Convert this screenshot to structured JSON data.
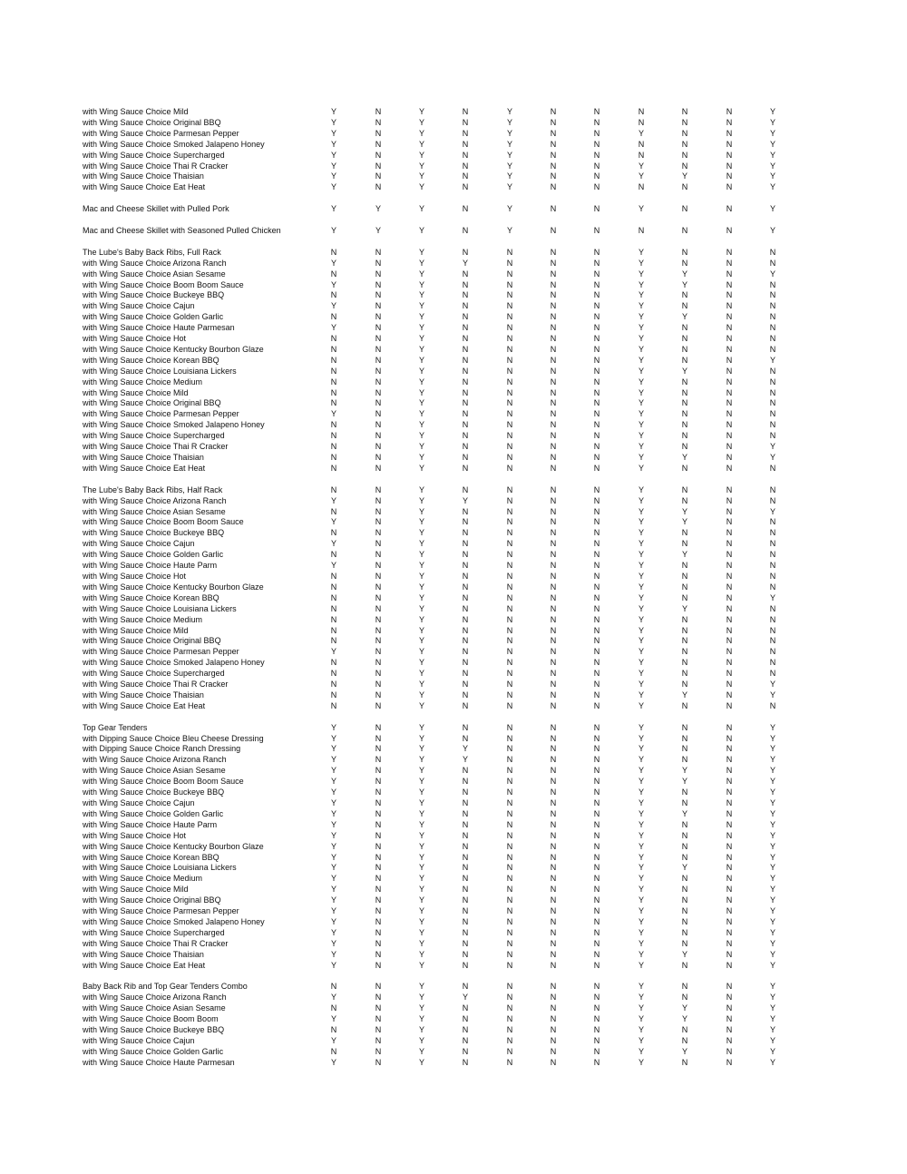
{
  "groups": [
    {
      "rows": [
        [
          "with Wing Sauce Choice Mild",
          "YNYNYNNNNNY"
        ],
        [
          "with Wing Sauce Choice Original BBQ",
          "YNYNYNNNNNY"
        ],
        [
          "with Wing Sauce Choice Parmesan Pepper",
          "YNYNYNNYNNY"
        ],
        [
          "with Wing Sauce Choice Smoked Jalapeno Honey",
          "YNYNYNNNNNY"
        ],
        [
          "with Wing Sauce Choice Supercharged",
          "YNYNYNNNNNY"
        ],
        [
          "with Wing Sauce Choice Thai R Cracker",
          "YNYNYNNYNNY"
        ],
        [
          "with Wing Sauce Choice Thaisian",
          "YNYNYNNYYNY"
        ],
        [
          "with Wing Sauce Choice Eat Heat",
          "YNYNYNNNNNY"
        ]
      ]
    },
    {
      "rows": [
        [
          "Mac and Cheese Skillet with Pulled Pork",
          "YYYNYNNYNNY"
        ]
      ]
    },
    {
      "rows": [
        [
          "Mac and Cheese Skillet with Seasoned Pulled Chicken",
          "YYYNYNNNNNY"
        ]
      ]
    },
    {
      "rows": [
        [
          "The Lube's Baby Back Ribs, Full Rack",
          "NNYNNNNYNNN"
        ],
        [
          "with Wing Sauce Choice Arizona Ranch",
          "YNYYNNNYNNN"
        ],
        [
          "with Wing Sauce Choice Asian Sesame",
          "NNYNNNNYYNY"
        ],
        [
          "with Wing Sauce Choice Boom Boom Sauce",
          "YNYNNNNYYNN"
        ],
        [
          "with Wing Sauce Choice Buckeye BBQ",
          "NNYNNNNYNNN"
        ],
        [
          "with Wing Sauce Choice Cajun",
          "YNYNNNNYNNN"
        ],
        [
          "with Wing Sauce Choice Golden Garlic",
          "NNYNNNNYYNN"
        ],
        [
          "with Wing Sauce Choice Haute Parmesan",
          "YNYNNNNYNNN"
        ],
        [
          "with Wing Sauce Choice Hot",
          "NNYNNNNYNNN"
        ],
        [
          "with Wing Sauce Choice Kentucky Bourbon Glaze",
          "NNYNNNNYNNN"
        ],
        [
          "with Wing Sauce Choice Korean BBQ",
          "NNYNNNNYNNY"
        ],
        [
          "with Wing Sauce Choice Louisiana Lickers",
          "NNYNNNNYYNN"
        ],
        [
          "with Wing Sauce Choice Medium",
          "NNYNNNNYNNN"
        ],
        [
          "with Wing Sauce Choice Mild",
          "NNYNNNNYNNN"
        ],
        [
          "with Wing Sauce Choice Original BBQ",
          "NNYNNNNYNNN"
        ],
        [
          "with Wing Sauce Choice Parmesan Pepper",
          "YNYNNNNYNNN"
        ],
        [
          "with Wing Sauce Choice Smoked Jalapeno Honey",
          "NNYNNNNYNNN"
        ],
        [
          "with Wing Sauce Choice Supercharged",
          "NNYNNNNYNNN"
        ],
        [
          "with Wing Sauce Choice Thai R Cracker",
          "NNYNNNNYNNY"
        ],
        [
          "with Wing Sauce Choice Thaisian",
          "NNYNNNNYYNY"
        ],
        [
          "with Wing Sauce Choice Eat Heat",
          "NNYNNNNYNNN"
        ]
      ]
    },
    {
      "rows": [
        [
          "The Lube's Baby Back Ribs, Half Rack",
          "NNYNNNNYNNN"
        ],
        [
          "with Wing Sauce Choice Arizona Ranch",
          "YNYYNNNYNNN"
        ],
        [
          "with Wing Sauce Choice Asian Sesame",
          "NNYNNNNYYNY"
        ],
        [
          "with Wing Sauce Choice Boom Boom Sauce",
          "YNYNNNNYYNN"
        ],
        [
          "with Wing Sauce Choice Buckeye BBQ",
          "NNYNNNNYNNN"
        ],
        [
          "with Wing Sauce Choice Cajun",
          "YNYNNNNYNNN"
        ],
        [
          "with Wing Sauce Choice Golden Garlic",
          "NNYNNNNYYNN"
        ],
        [
          "with Wing Sauce Choice Haute Parm",
          "YNYNNNNYNNN"
        ],
        [
          "with Wing Sauce Choice Hot",
          "NNYNNNNYNNN"
        ],
        [
          "with Wing Sauce Choice Kentucky Bourbon Glaze",
          "NNYNNNNYNNN"
        ],
        [
          "with Wing Sauce Choice Korean BBQ",
          "NNYNNNNYNNY"
        ],
        [
          "with Wing Sauce Choice Louisiana Lickers",
          "NNYNNNNYYNN"
        ],
        [
          "with Wing Sauce Choice Medium",
          "NNYNNNNYNNN"
        ],
        [
          "with Wing Sauce Choice Mild",
          "NNYNNNNYNNN"
        ],
        [
          "with Wing Sauce Choice Original BBQ",
          "NNYNNNNYNNN"
        ],
        [
          "with Wing Sauce Choice Parmesan Pepper",
          "YNYNNNNYNNN"
        ],
        [
          "with Wing Sauce Choice Smoked Jalapeno Honey",
          "NNYNNNNYNNN"
        ],
        [
          "with Wing Sauce Choice Supercharged",
          "NNYNNNNYNNN"
        ],
        [
          "with Wing Sauce Choice Thai R Cracker",
          "NNYNNNNYNNY"
        ],
        [
          "with Wing Sauce Choice Thaisian",
          "NNYNNNNYYNY"
        ],
        [
          "with Wing Sauce Choice Eat Heat",
          "NNYNNNNYNNN"
        ]
      ]
    },
    {
      "rows": [
        [
          "Top Gear Tenders",
          "YNYNNNNYNNY"
        ],
        [
          "with Dipping Sauce Choice Bleu Cheese Dressing",
          "YNYNNNNYNNY"
        ],
        [
          "with Dipping Sauce Choice Ranch Dressing",
          "YNYYNNNYNNY"
        ],
        [
          "with Wing Sauce Choice Arizona Ranch",
          "YNYYNNNYNNY"
        ],
        [
          "with Wing Sauce Choice Asian Sesame",
          "YNYNNNNYYNY"
        ],
        [
          "with Wing Sauce Choice Boom Boom Sauce",
          "YNYNNNNYYNY"
        ],
        [
          "with Wing Sauce Choice Buckeye BBQ",
          "YNYNNNNYNNY"
        ],
        [
          "with Wing Sauce Choice Cajun",
          "YNYNNNNYNNY"
        ],
        [
          "with Wing Sauce Choice Golden Garlic",
          "YNYNNNNYYNY"
        ],
        [
          "with Wing Sauce Choice Haute Parm",
          "YNYNNNNYNNY"
        ],
        [
          "with Wing Sauce Choice Hot",
          "YNYNNNNYNNY"
        ],
        [
          "with Wing Sauce Choice Kentucky Bourbon Glaze",
          "YNYNNNNYNNY"
        ],
        [
          "with Wing Sauce Choice Korean BBQ",
          "YNYNNNNYNNY"
        ],
        [
          "with Wing Sauce Choice Louisiana Lickers",
          "YNYNNNNYYNY"
        ],
        [
          "with Wing Sauce Choice Medium",
          "YNYNNNNYNNY"
        ],
        [
          "with Wing Sauce Choice Mild",
          "YNYNNNNYNNY"
        ],
        [
          "with Wing Sauce Choice Original BBQ",
          "YNYNNNNYNNY"
        ],
        [
          "with Wing Sauce Choice Parmesan Pepper",
          "YNYNNNNYNNY"
        ],
        [
          "with Wing Sauce Choice Smoked Jalapeno Honey",
          "YNYNNNNYNNY"
        ],
        [
          "with Wing Sauce Choice Supercharged",
          "YNYNNNNYNNY"
        ],
        [
          "with Wing Sauce Choice Thai R Cracker",
          "YNYNNNNYNNY"
        ],
        [
          "with Wing Sauce Choice Thaisian",
          "YNYNNNNYYNY"
        ],
        [
          "with Wing Sauce Choice Eat Heat",
          "YNYNNNNYNNY"
        ]
      ]
    },
    {
      "rows": [
        [
          "Baby Back Rib and Top Gear Tenders Combo",
          "NNYNNNNYNNY"
        ],
        [
          "with Wing Sauce Choice Arizona Ranch",
          "YNYYNNNYNNY"
        ],
        [
          "with Wing Sauce Choice Asian Sesame",
          "NNYNNNNYYNY"
        ],
        [
          "with Wing Sauce Choice Boom Boom",
          "YNYNNNNYYNY"
        ],
        [
          "with Wing Sauce Choice Buckeye BBQ",
          "NNYNNNNYNNY"
        ],
        [
          "with Wing Sauce Choice Cajun",
          "YNYNNNNYNNY"
        ],
        [
          "with Wing Sauce Choice Golden Garlic",
          "NNYNNNNYYNY"
        ],
        [
          "with Wing Sauce Choice Haute Parmesan",
          "YNYNNNNYNNY"
        ]
      ]
    }
  ]
}
